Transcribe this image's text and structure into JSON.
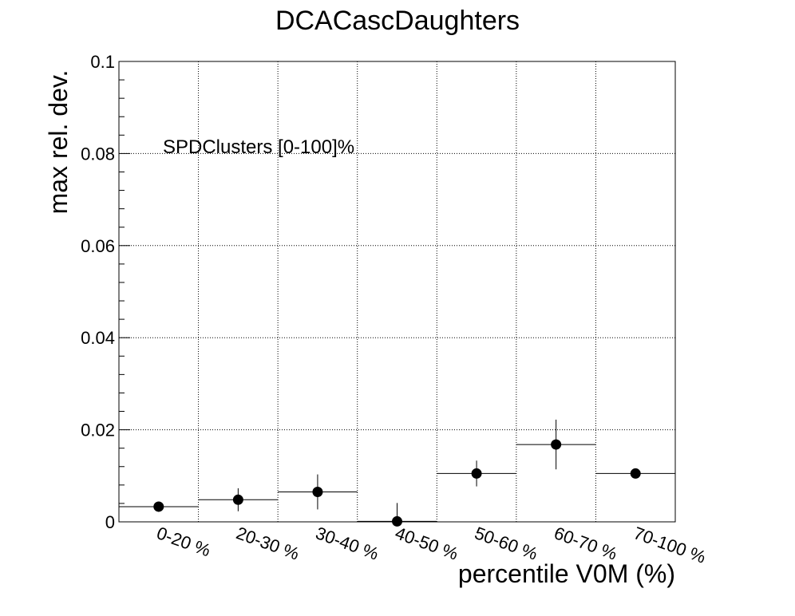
{
  "chart_data": {
    "type": "scatter",
    "title": "DCACascDaughters",
    "xlabel": "percentile V0M (%)",
    "ylabel": "max rel. dev.",
    "annotation": "SPDClusters [0-100]%",
    "categories": [
      "0-20 %",
      "20-30 %",
      "30-40 %",
      "40-50 %",
      "50-60 %",
      "60-70 %",
      "70-100 %"
    ],
    "values": [
      0.0033,
      0.0048,
      0.0065,
      0.0001,
      0.0105,
      0.0168,
      0.0105
    ],
    "errors": [
      0.0008,
      0.0025,
      0.0038,
      0.004,
      0.0028,
      0.0054,
      0.001
    ],
    "ylim": [
      0,
      0.1
    ],
    "yticks": [
      "0",
      "0.02",
      "0.04",
      "0.06",
      "0.08",
      "0.1"
    ],
    "grid": true,
    "legend": "none",
    "marker_color": "#000000"
  }
}
